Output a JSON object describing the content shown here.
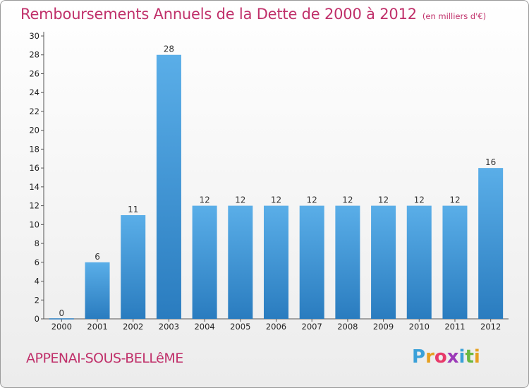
{
  "header": {
    "title": "Remboursements Annuels de la Dette de 2000 à 2012",
    "subtitle": "(en milliers d'€)"
  },
  "footer": {
    "commune": "APPENAI-SOUS-BELLêME"
  },
  "logo": {
    "letters": [
      "P",
      "r",
      "o",
      "x",
      "i",
      "t",
      "i"
    ],
    "colors": [
      "#3aa0d8",
      "#e6a020",
      "#e83a6a",
      "#9c3ab8",
      "#3aa0d8",
      "#6ab840",
      "#e6a020"
    ]
  },
  "colors": {
    "bar_top": "#5aaee8",
    "bar_bottom": "#2a7cbf",
    "title": "#c0306a"
  },
  "chart_data": {
    "type": "bar",
    "categories": [
      "2000",
      "2001",
      "2002",
      "2003",
      "2004",
      "2005",
      "2006",
      "2007",
      "2008",
      "2009",
      "2010",
      "2011",
      "2012"
    ],
    "values": [
      0,
      6,
      11,
      28,
      12,
      12,
      12,
      12,
      12,
      12,
      12,
      12,
      16
    ],
    "data_labels": [
      "0",
      "6",
      "11",
      "28",
      "12",
      "12",
      "12",
      "12",
      "12",
      "12",
      "12",
      "12",
      "16"
    ],
    "y_ticks": [
      0,
      2,
      4,
      6,
      8,
      10,
      12,
      14,
      16,
      18,
      20,
      22,
      24,
      26,
      28,
      30
    ],
    "ylim": [
      0,
      30
    ],
    "grid": false,
    "title": "Remboursements Annuels de la Dette de 2000 à 2012",
    "subtitle": "(en milliers d'€)",
    "xlabel": "",
    "ylabel": ""
  }
}
